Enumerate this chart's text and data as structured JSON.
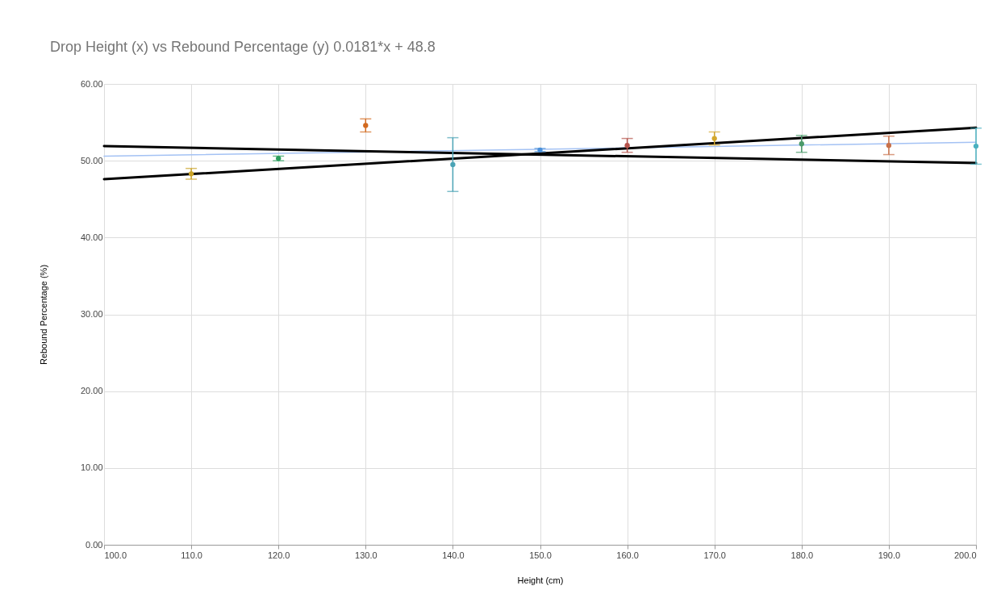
{
  "chart_data": {
    "type": "scatter",
    "title": "Drop Height (x) vs Rebound Percentage (y) 0.0181*x + 48.8",
    "xlabel": "Height (cm)",
    "ylabel": "Rebound Percentage (%)",
    "xlim": [
      100,
      200
    ],
    "ylim": [
      0,
      60
    ],
    "xticks": [
      {
        "value": 100,
        "label": "100.0"
      },
      {
        "value": 110,
        "label": "110.0"
      },
      {
        "value": 120,
        "label": "120.0"
      },
      {
        "value": 130,
        "label": "130.0"
      },
      {
        "value": 140,
        "label": "140.0"
      },
      {
        "value": 150,
        "label": "150.0"
      },
      {
        "value": 160,
        "label": "160.0"
      },
      {
        "value": 170,
        "label": "170.0"
      },
      {
        "value": 180,
        "label": "180.0"
      },
      {
        "value": 190,
        "label": "190.0"
      },
      {
        "value": 200,
        "label": "200.0"
      }
    ],
    "yticks": [
      {
        "value": 0,
        "label": "0.00"
      },
      {
        "value": 10,
        "label": "10.00"
      },
      {
        "value": 20,
        "label": "20.00"
      },
      {
        "value": 30,
        "label": "30.00"
      },
      {
        "value": 40,
        "label": "40.00"
      },
      {
        "value": 50,
        "label": "50.00"
      },
      {
        "value": 60,
        "label": "60.00"
      }
    ],
    "grid": true,
    "series": [
      {
        "marker": "circle",
        "x": [
          110,
          120,
          130,
          140,
          150,
          160,
          170,
          180,
          190,
          200
        ],
        "values": [
          48.3,
          50.3,
          54.6,
          49.5,
          51.4,
          52.0,
          52.9,
          52.2,
          52.0,
          51.9
        ],
        "errors": [
          0.7,
          0.3,
          0.85,
          3.5,
          0.2,
          0.9,
          0.85,
          1.1,
          1.2,
          2.35
        ],
        "colors": [
          "#c9a227",
          "#2a9d5c",
          "#d2691e",
          "#4aa3b5",
          "#4a90d9",
          "#b5524a",
          "#d4a72c",
          "#4a9a6a",
          "#c9714a",
          "#4ab0c0"
        ]
      },
      {
        "type": "line",
        "x": [
          100,
          200
        ],
        "values": [
          50.6,
          52.4
        ],
        "color": "#a4c2f4",
        "line_style": "solid"
      },
      {
        "type": "line",
        "x": [
          100,
          200
        ],
        "values": [
          51.9,
          49.7
        ],
        "color": "#000000",
        "line_style": "solid"
      },
      {
        "type": "line",
        "x": [
          100,
          200
        ],
        "values": [
          47.6,
          54.3
        ],
        "color": "#000000",
        "line_style": "solid"
      }
    ]
  }
}
